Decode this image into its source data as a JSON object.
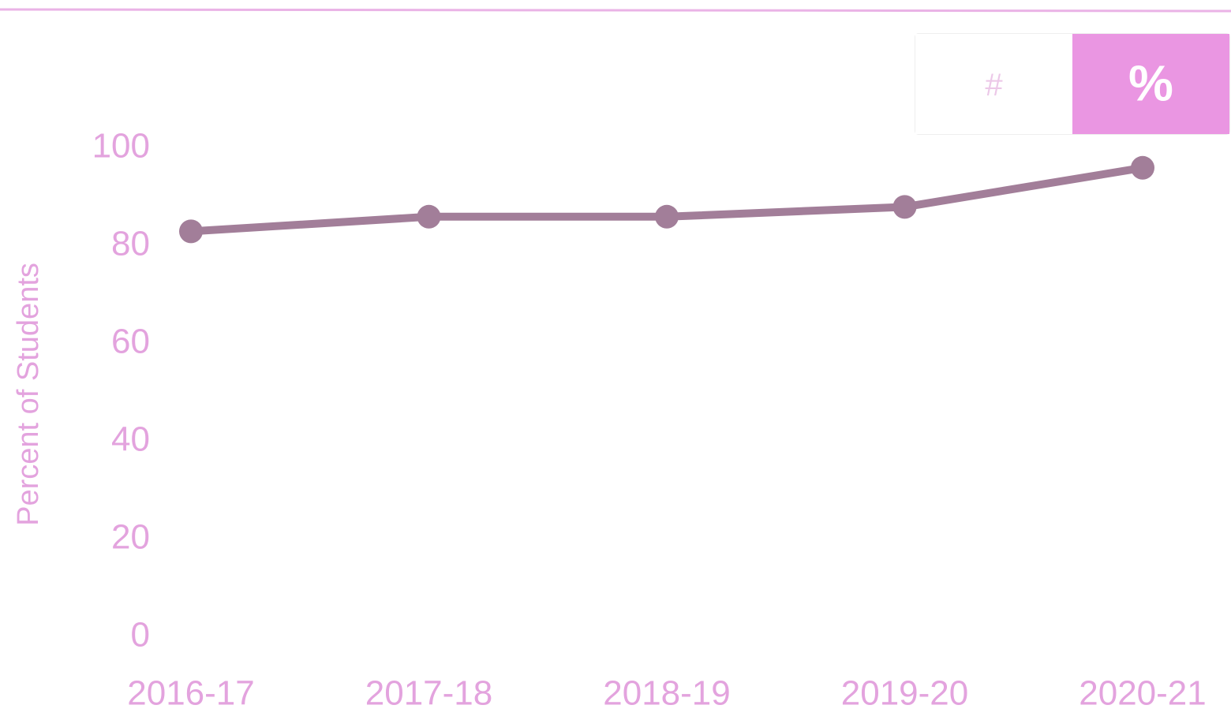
{
  "chart_data": {
    "type": "line",
    "y_label": "Percent of Students",
    "categories": [
      "2016-17",
      "2017-18",
      "2018-19",
      "2019-20",
      "2020-21"
    ],
    "values": [
      83,
      86,
      86,
      88,
      96
    ],
    "color": "#a27e99",
    "ylim": [
      0,
      100
    ],
    "yticks": [
      0,
      20,
      40,
      60,
      80,
      100
    ],
    "grid": false,
    "toggle": {
      "options": [
        "#",
        "%"
      ],
      "active_index": 1,
      "active_color": "#ea96e2"
    }
  }
}
